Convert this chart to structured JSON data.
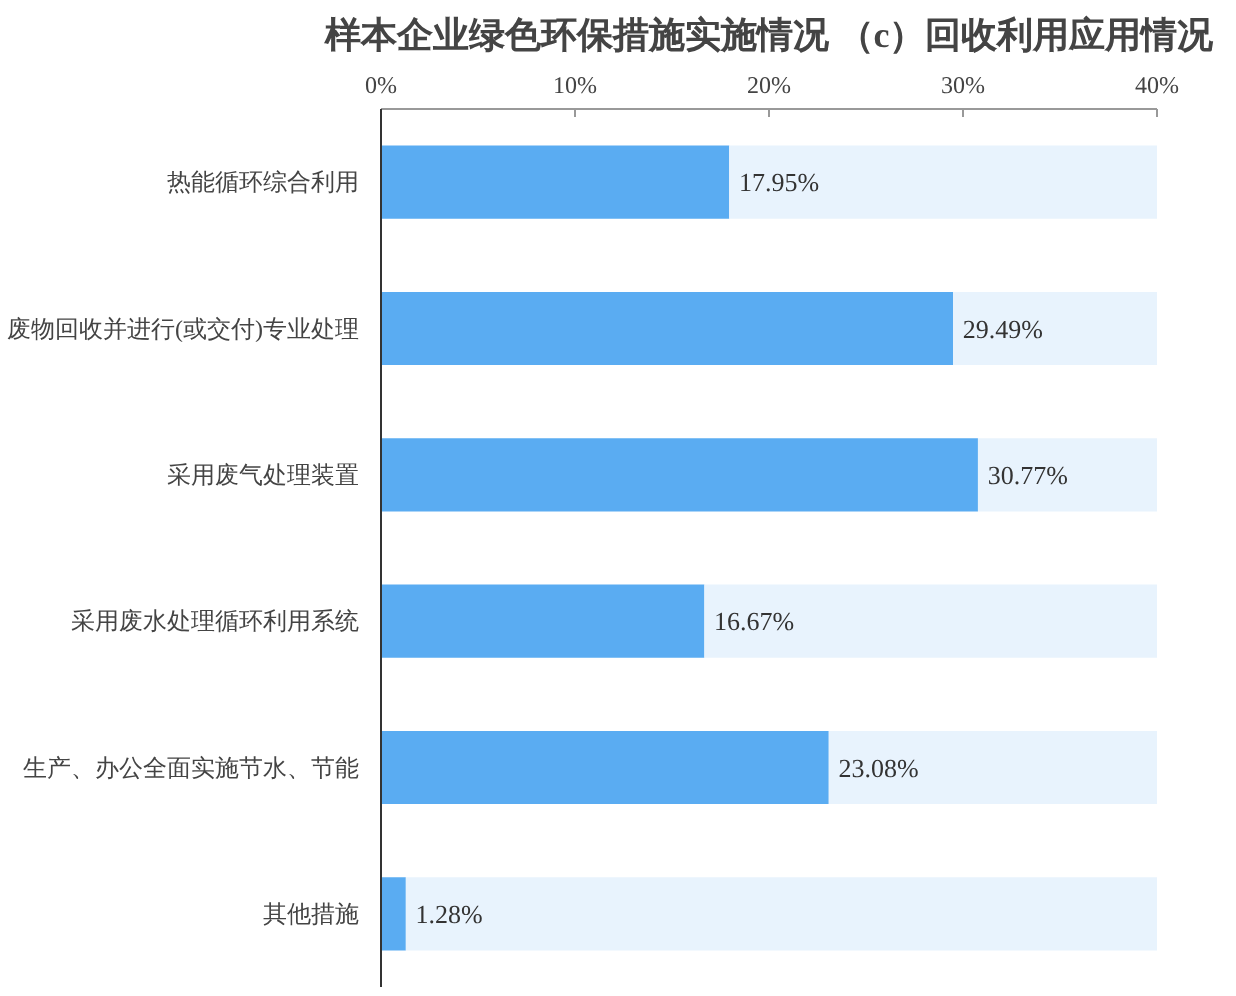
{
  "chart_data": {
    "type": "bar",
    "orientation": "horizontal",
    "stacked": true,
    "title": "样本企业绿色环保措施实施情况 （c）回收利用应用情况",
    "categories": [
      "热能循环综合利用",
      "废物回收并进行(或交付)专业处理",
      "采用废气处理装置",
      "采用废水处理循环利用系统",
      "生产、办公全面实施节水、节能",
      "其他措施"
    ],
    "series": [
      {
        "color": "#5aacf2",
        "values": [
          17.95,
          29.49,
          30.77,
          16.67,
          23.08,
          1.28
        ],
        "value_labels": [
          "17.95%",
          "29.49%",
          "30.77%",
          "16.67%",
          "23.08%",
          "1.28%"
        ]
      },
      {
        "color": "#e8f3fd",
        "values": [
          22.05,
          10.51,
          9.23,
          23.33,
          16.92,
          38.72
        ]
      }
    ],
    "xlim": [
      0,
      40
    ],
    "xticks": [
      {
        "value": 0,
        "label": "0%"
      },
      {
        "value": 10,
        "label": "10%"
      },
      {
        "value": 20,
        "label": "20%"
      },
      {
        "value": 30,
        "label": "30%"
      },
      {
        "value": 40,
        "label": "40%"
      }
    ],
    "grid": false
  }
}
